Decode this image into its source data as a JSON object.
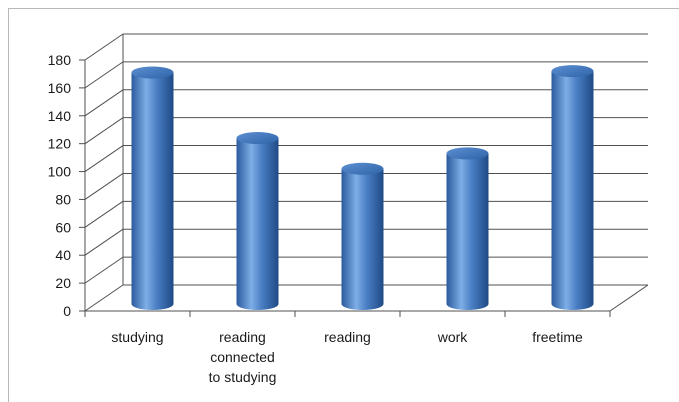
{
  "chart_data": {
    "type": "bar",
    "style": "3d-cylinder",
    "categories": [
      "studying",
      "reading connected to studying",
      "reading",
      "work",
      "freetime"
    ],
    "category_lines": [
      [
        "studying"
      ],
      [
        "reading",
        "connected",
        "to studying"
      ],
      [
        "reading"
      ],
      [
        "work"
      ],
      [
        "freetime"
      ]
    ],
    "values": [
      166,
      119,
      97,
      108,
      167
    ],
    "ylim": [
      0,
      180
    ],
    "yticks": [
      "0",
      "20",
      "40",
      "60",
      "80",
      "100",
      "120",
      "140",
      "160",
      "180"
    ],
    "grid": true,
    "legend": "none",
    "colors": {
      "bar": "#4a7ec4",
      "bar_light": "#7eaee6",
      "bar_dark": "#234f8e",
      "grid": "#505050"
    }
  }
}
